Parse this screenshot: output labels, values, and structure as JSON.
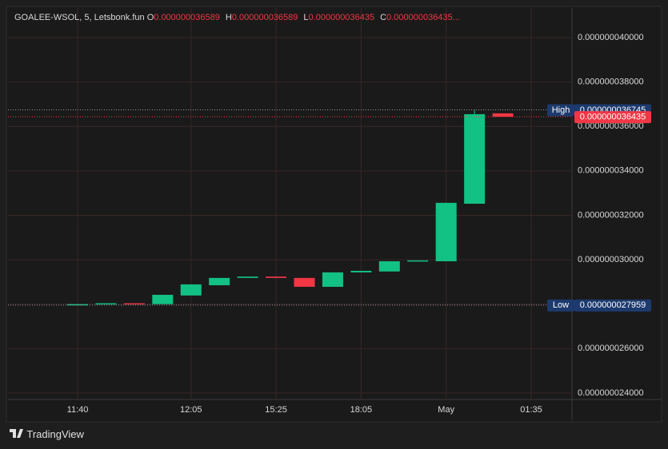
{
  "chart_data": {
    "type": "candlestick",
    "header": {
      "symbol": "GOALEE-WSOL, 5, Letsbonk.fun",
      "ohlc": [
        {
          "name": "O",
          "text": "0.000000036589"
        },
        {
          "name": "H",
          "text": "0.000000036589"
        },
        {
          "name": "L",
          "text": "0.000000036435"
        },
        {
          "name": "C",
          "text": "0.000000036435..."
        }
      ]
    },
    "categories": [
      "11:40",
      null,
      null,
      null,
      "12:05",
      null,
      null,
      "15:25",
      null,
      null,
      "18:05",
      null,
      null,
      "May",
      null,
      null,
      "01:35"
    ],
    "open": [
      2.796e-08,
      2.8e-08,
      2.804e-08,
      2.8e-08,
      2.839e-08,
      2.885e-08,
      2.918e-08,
      2.924e-08,
      2.918e-08,
      2.878e-08,
      2.943e-08,
      2.947e-08,
      2.993e-08,
      2.993e-08,
      3.252e-08,
      3.6589e-08,
      null
    ],
    "high": [
      2.8e-08,
      2.804e-08,
      2.804e-08,
      2.842e-08,
      2.889e-08,
      2.918e-08,
      2.924e-08,
      2.924e-08,
      2.918e-08,
      2.943e-08,
      2.95e-08,
      2.993e-08,
      2.997e-08,
      3.256e-08,
      3.6745e-08,
      3.6589e-08,
      null
    ],
    "low": [
      2.7959e-08,
      2.8e-08,
      2.8e-08,
      2.8e-08,
      2.839e-08,
      2.885e-08,
      2.918e-08,
      2.918e-08,
      2.878e-08,
      2.878e-08,
      2.943e-08,
      2.947e-08,
      2.993e-08,
      2.993e-08,
      3.252e-08,
      3.6435e-08,
      null
    ],
    "close": [
      2.8e-08,
      2.804e-08,
      2.8e-08,
      2.842e-08,
      2.889e-08,
      2.918e-08,
      2.924e-08,
      2.918e-08,
      2.878e-08,
      2.943e-08,
      2.95e-08,
      2.993e-08,
      2.997e-08,
      3.256e-08,
      3.655e-08,
      3.6435e-08,
      null
    ],
    "up_color": "#12c184",
    "down_color": "#f23645",
    "ylim": [
      2.371e-08,
      4.133e-08
    ],
    "yticks": [
      {
        "value": 2.4e-08,
        "label": "0.000000024000"
      },
      {
        "value": 2.6e-08,
        "label": "0.000000026000"
      },
      {
        "value": 2.8e-08,
        "label": "0.000000028000"
      },
      {
        "value": 3e-08,
        "label": "0.000000030000"
      },
      {
        "value": 3.2e-08,
        "label": "0.000000032000"
      },
      {
        "value": 3.4e-08,
        "label": "0.000000034000"
      },
      {
        "value": 3.6e-08,
        "label": "0.000000036000"
      },
      {
        "value": 3.8e-08,
        "label": "0.000000038000"
      },
      {
        "value": 4e-08,
        "label": "0.000000040000"
      }
    ],
    "grid": true,
    "markers": [
      {
        "name": "High",
        "value": 3.6745e-08,
        "value_label": "0.000000036745",
        "color": "#1c3a6e",
        "line_color": "#9a9a9a"
      },
      {
        "value": 3.6435e-08,
        "value_label": "0.000000036435",
        "color": "#f23645",
        "line_color": "#f23645"
      },
      {
        "name": "Low",
        "value": 2.7959e-08,
        "value_label": "0.000000027959",
        "color": "#1c3a6e",
        "line_color": "#9a9a9a"
      }
    ],
    "footer": "TradingView"
  }
}
